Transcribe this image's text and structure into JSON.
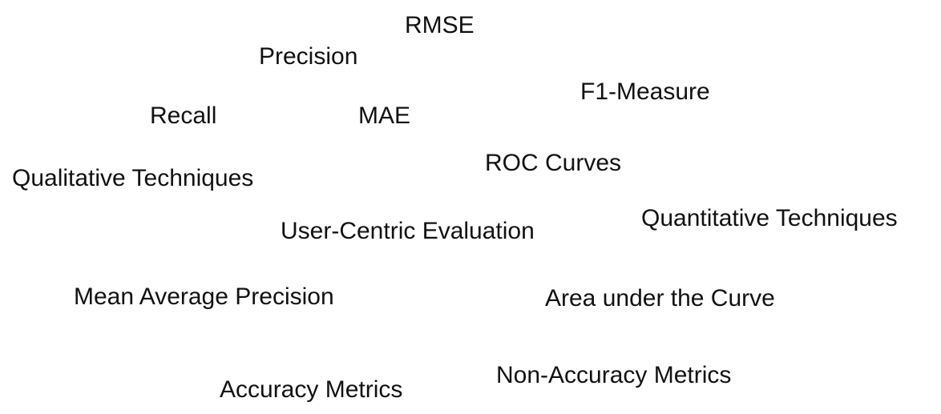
{
  "terms": {
    "rmse": "RMSE",
    "precision": "Precision",
    "f1_measure": "F1-Measure",
    "recall": "Recall",
    "mae": "MAE",
    "roc_curves": "ROC Curves",
    "qualitative_techniques": "Qualitative Techniques",
    "quantitative_techniques": "Quantitative Techniques",
    "user_centric_evaluation": "User-Centric Evaluation",
    "mean_average_precision": "Mean Average Precision",
    "area_under_curve": "Area under the Curve",
    "non_accuracy_metrics": "Non-Accuracy Metrics",
    "accuracy_metrics": "Accuracy Metrics"
  },
  "colors": {
    "text": "#111111",
    "background": "#ffffff"
  }
}
